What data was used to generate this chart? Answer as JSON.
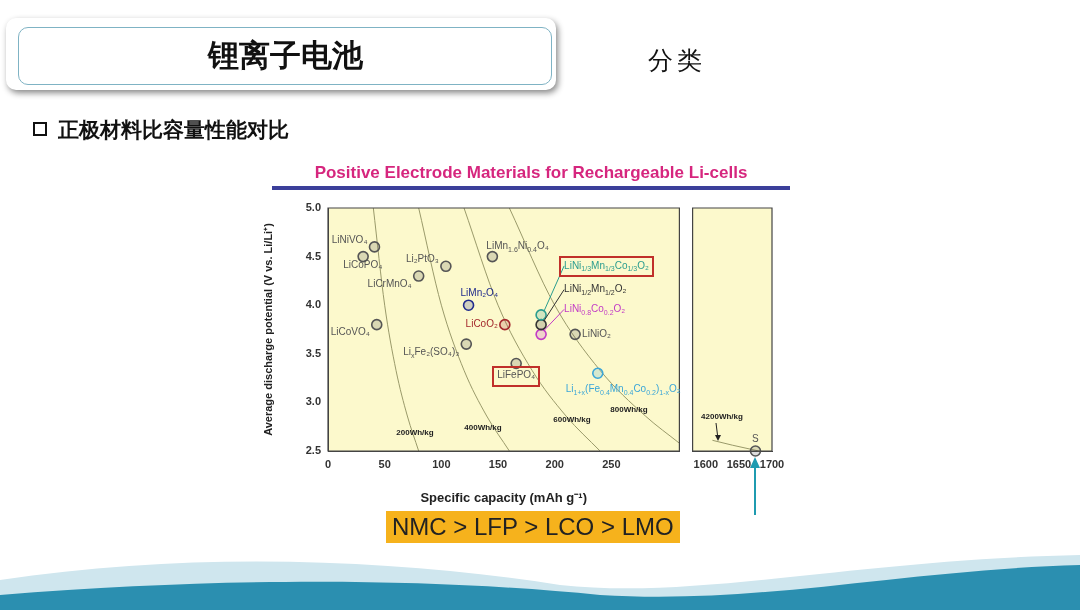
{
  "chart_data": [
    {
      "type": "other",
      "title": "锂离子电池",
      "subtitle": "正极材料比容量性能对比",
      "annotations": [
        "分类",
        "NMC > LFP > LCO > LMO"
      ]
    },
    {
      "type": "scatter",
      "title": "Positive Electrode Materials for Rechargeable Li-cells",
      "xlabel": "Specific capacity (mAh g⁻¹)",
      "ylabel": "Average discharge potential (V vs. Li/Li⁺)",
      "xlim": [
        0,
        310
      ],
      "xticks": [
        0,
        50,
        100,
        150,
        200,
        250
      ],
      "ylim": [
        2.5,
        5
      ],
      "yticks": [
        2.5,
        {
          "value": 3,
          "label": "3.0"
        },
        3.5,
        {
          "value": 4,
          "label": "4.0"
        },
        4.5,
        {
          "value": 5,
          "label": "5.0"
        }
      ],
      "marker": "circle",
      "series": [
        {
          "name": "LiNiVO₄",
          "color": "#555555",
          "x": [
            41
          ],
          "values": [
            4.6
          ]
        },
        {
          "name": "LiCoPO₄",
          "color": "#555555",
          "x": [
            31
          ],
          "values": [
            4.5
          ]
        },
        {
          "name": "LiCrMnO₄",
          "color": "#555555",
          "x": [
            80
          ],
          "values": [
            4.3
          ]
        },
        {
          "name": "Li₂PtO₃",
          "color": "#555555",
          "x": [
            104
          ],
          "values": [
            4.4
          ]
        },
        {
          "name": "LiMn$_{1.6}$Ni$_{0.4}$O₄",
          "color": "#555555",
          "x": [
            145
          ],
          "values": [
            4.5
          ]
        },
        {
          "name": "LiMn₂O₄",
          "color": "#1f2a8c",
          "x": [
            124
          ],
          "values": [
            4.0
          ]
        },
        {
          "name": "LiCoO₂",
          "color": "#a3282c",
          "x": [
            156
          ],
          "values": [
            3.8
          ]
        },
        {
          "name": "LiCoVO₄",
          "color": "#555555",
          "x": [
            43
          ],
          "values": [
            3.8
          ]
        },
        {
          "name": "Li$_{x}$Fe₂(SO₄)₃",
          "color": "#555555",
          "x": [
            122
          ],
          "values": [
            3.6
          ]
        },
        {
          "name": "LiFePO₄",
          "color": "#555555",
          "x": [
            166
          ],
          "values": [
            3.4
          ]
        },
        {
          "name": "LiNi$_{1/3}$Mn$_{1/3}$Co$_{1/3}$O₂",
          "color": "#2a9d8f",
          "x": [
            188
          ],
          "values": [
            3.9
          ]
        },
        {
          "name": "LiNi$_{1/2}$Mn$_{1/2}$O₂",
          "color": "#333333",
          "x": [
            188
          ],
          "values": [
            3.8
          ]
        },
        {
          "name": "LiNi$_{0.8}$Co$_{0.2}$O₂",
          "color": "#c23bc6",
          "x": [
            188
          ],
          "values": [
            3.7
          ]
        },
        {
          "name": "LiNiO₂",
          "color": "#555555",
          "x": [
            218
          ],
          "values": [
            3.7
          ]
        },
        {
          "name": "Li$_{1+x}$(Fe$_{0.4}$Mn$_{0.4}$Co$_{0.2}$)$_{1-x}$O₂",
          "color": "#3aa6d8",
          "x": [
            238
          ],
          "values": [
            3.3
          ]
        },
        {
          "type": "line",
          "marker": "none",
          "color": "#9a9a6a",
          "x": [
            40,
            50,
            60,
            70,
            80
          ],
          "values": [
            5,
            4,
            3.33,
            2.86,
            2.5
          ]
        },
        {
          "type": "line",
          "marker": "none",
          "color": "#9a9a6a",
          "x": [
            80,
            100,
            120,
            140,
            160
          ],
          "values": [
            5,
            4,
            3.33,
            2.86,
            2.5
          ]
        },
        {
          "type": "line",
          "marker": "none",
          "color": "#9a9a6a",
          "x": [
            120,
            150,
            180,
            210,
            240
          ],
          "values": [
            5,
            4,
            3.33,
            2.86,
            2.5
          ]
        },
        {
          "type": "line",
          "marker": "none",
          "color": "#9a9a6a",
          "x": [
            160,
            200,
            240,
            280,
            310
          ],
          "values": [
            5,
            4,
            3.33,
            2.86,
            2.58
          ]
        }
      ],
      "annotations": [
        "200Wh/kg",
        "400Wh/kg",
        "600Wh/kg",
        "800Wh/kg"
      ]
    },
    {
      "type": "scatter",
      "xlim": [
        1580,
        1700
      ],
      "xticks": [
        1600,
        1650,
        1700
      ],
      "ylim": [
        2.5,
        5
      ],
      "tick_labels": "x",
      "marker": "circle",
      "series": [
        {
          "name": "S",
          "color": "#555555",
          "x": [
            1675
          ],
          "values": [
            2.5
          ]
        },
        {
          "type": "line",
          "marker": "none",
          "color": "#9a9a6a",
          "x": [
            1610,
            1640,
            1680
          ],
          "values": [
            2.61,
            2.56,
            2.5
          ]
        }
      ],
      "annotations": [
        "4200Wh/kg"
      ]
    }
  ]
}
